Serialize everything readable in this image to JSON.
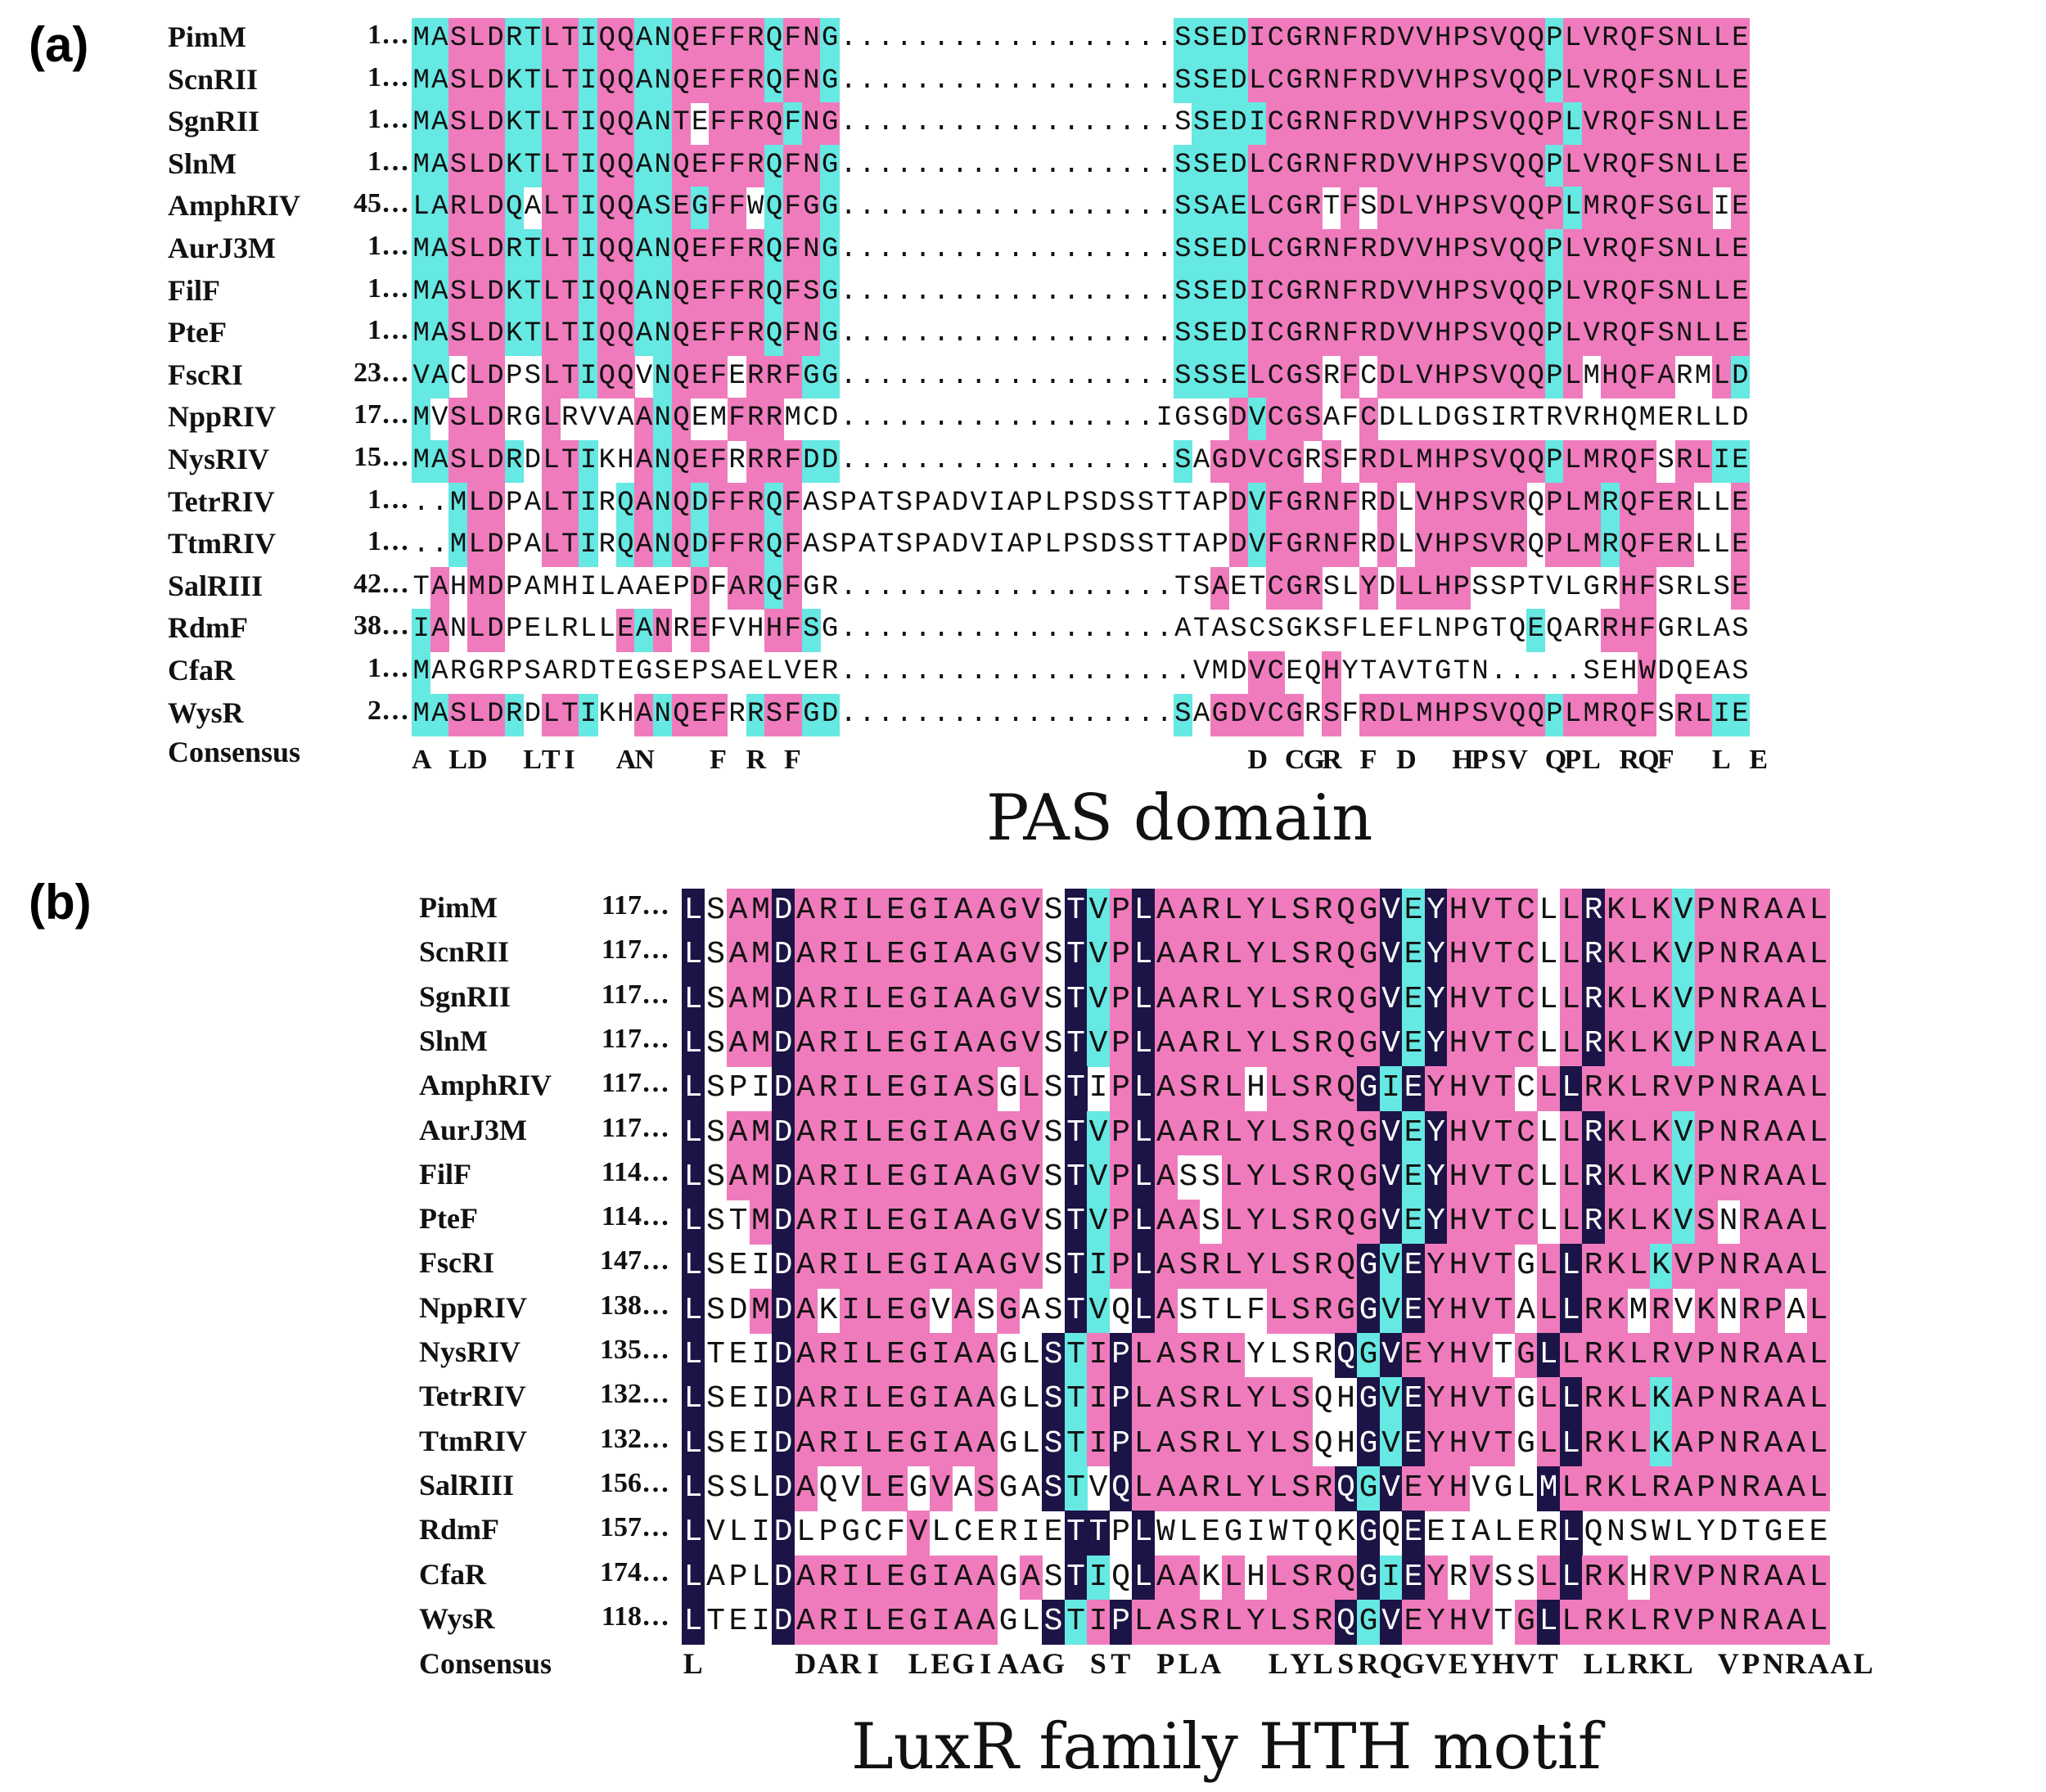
{
  "colors": {
    "identical": "#1c1446",
    "conserved": "#ef7bbd",
    "similar": "#66e8e3",
    "background": "#ffffff"
  },
  "panels": [
    {
      "letter": "(a)",
      "caption": "PAS domain",
      "consensus_label": "Consensus",
      "sequences": [
        {
          "name": "PimM",
          "start": "1…",
          "seq": "MASLDRTLTIQQANQEFFRQFNG..................SSEDICGRNFRDVVHPSVQQPLVRQFSNLLE",
          "shade": "ccpppccppcppccpppppcppcwwwwwwwwwwwwwwwwwwccccppppppppppppppppcppppppppppccp"
        },
        {
          "name": "ScnRII",
          "start": "1…",
          "seq": "MASLDKTLTIQQANQEFFRQFNG..................SSEDLCGRNFRDVVHPSVQQPLVRQFSNLLE",
          "shade": "ccpppccppcppccpppppcppcwwwwwwwwwwwwwwwwwwccccppppppppppppppppcppppppppppccp"
        },
        {
          "name": "SgnRII",
          "start": "1…",
          "seq": "MASLDKTLTIQQANTEFFRQFNG..................SSEDICGRNFRDVVHPSVQQPLVRQFSNLLE",
          "shade": "ccpppccppcppccpwppppcppcwwwwwwwwwwwwwwwwwwccccppppppppppppppppcppppppppppccp"
        },
        {
          "name": "SlnM",
          "start": "1…",
          "seq": "MASLDKTLTIQQANQEFFRQFNG..................SSEDLCGRNFRDVVHPSVQQPLVRQFSNLLE",
          "shade": "ccpppccppcppccpppppcppcwwwwwwwwwwwwwwwwwwccccppppppppppppppppcppppppppppccp"
        },
        {
          "name": "AmphRIV",
          "start": "45…",
          "seq": "LARLDQALTIQQASEGFFWQFGG..................SSAELCGRTFSDLVHPSVQQPLMRQFSGLIE",
          "shade": "ccpppcwppcppccpcppwcppcwwwwwwwwwwwwwwwwwwccccppppwpwppppppppppcpppppppwpccp"
        },
        {
          "name": "AurJ3M",
          "start": "1…",
          "seq": "MASLDRTLTIQQANQEFFRQFNG..................SSEDLCGRNFRDVVHPSVQQPLVRQFSNLLE",
          "shade": "ccpppccppcppccpppppcppcwwwwwwwwwwwwwwwwwwccccppppppppppppppppcppppppppppccp"
        },
        {
          "name": "FilF",
          "start": "1…",
          "seq": "MASLDKTLTIQQANQEFFRQFSG..................SSEDICGRNFRDVVHPSVQQPLVRQFSNLLE",
          "shade": "ccpppccppcppccpppppcppcwwwwwwwwwwwwwwwwwwccccppppppppppppppppcppppppppppccp"
        },
        {
          "name": "PteF",
          "start": "1…",
          "seq": "MASLDKTLTIQQANQEFFRQFNG..................SSEDICGRNFRDVVHPSVQQPLVRQFSNLLE",
          "shade": "ccpppccppcppccpppppcppcwwwwwwwwwwwwwwwwwwccccppppppppppppppppcppppppppppccp"
        },
        {
          "name": "FscRI",
          "start": "23…",
          "seq": "VACLDPSLTIQQVNQEFERRFGG..................SSSELCGSRFCDLVHPSVQQPLMHQFARMLD",
          "shade": "ccwppwwppcppwcpppwpppccwwwwwwwwwwwwwwwwwwccccppppwpwpppppppppcpwppppwwpcc"
        },
        {
          "name": "NppRIV",
          "start": "17…",
          "seq": "MVSLDRGLRVVAANQEMFRRMCD.................IGSGDVCGSAFCDLLDGSIRTRVRHQMERLLD",
          "shade": "cwpppwwpwwwwpcpwwpppwwwwwwwwwwwwwwwwwwwwwwwwpcpppwwpwwwwwwwwwwwwwwwwwwwwwcc"
        },
        {
          "name": "NysRIV",
          "start": "15…",
          "seq": "MASLDRDLTIKHANQEFRRRFDD..................SAGDVCGRSFRDLMHPSVQQPLMRQFSRLIE",
          "shade": "ccpppcwppcwwpcpppwpppccwwwwwwwwwwwwwwwwwwcwpppppwpwppppppppppcpppppwppccp"
        },
        {
          "name": "TetrRIV",
          "start": "1…",
          "seq": "..MLDPALTIRQANQDFFRQFASPATSPADVIAPLPSDSSTTAPDVFGRNFRDLVHPSVRQPLMRQFERLLE",
          "shade": "wwcppwwppcwcpcpcpppcpwwwwwwwwwwwwwwwwwwwwwwwpcpppppwpwppppppwpppcppppwwpccp"
        },
        {
          "name": "TtmRIV",
          "start": "1…",
          "seq": "..MLDPALTIRQANQDFFRQFASPATSPADVIAPLPSDSSTTAPDVFGRNFRDLVHPSVRQPLMRQFERLLE",
          "shade": "wwcppwwppcwcpcpcpppcpwwwwwwwwwwwwwwwwwwwwwwwpcpppppwpwppppppwpppcppppwwpccp"
        },
        {
          "name": "SalRIII",
          "start": "42…",
          "seq": "TAHMDPAMHILAAEPDFARQFGR..................TSAETCGRSLYDLLHPSSPTVLGRHFSRLSE",
          "shade": "wpwppwwwwwwwwwwpwppcpwwwwwwwwwwwwwwwwwwwwwwpwwpppwwpwppppwwwwwwwwppwwwwp"
        },
        {
          "name": "RdmF",
          "start": "38…",
          "seq": "IANLDPELRLLEANREFVHHFSG..................ATASCSGKSFLEFLNPGTQEQARRHFGRLAS",
          "shade": "cpwppwwwwwwpcpwpwwwppcwwwwwwwwwwwwwwwwwwwwwwwwwwwwwwwwwwwwwwcwwwpppwwwww"
        },
        {
          "name": "CfaR",
          "start": "1…",
          "seq": "MARGRPSARDTEGSEPSAELVER...................VMDVCEQHYTAVTGTN.....SEHWDQEAS",
          "shade": "cwwwwwwwwwwwwwwwwwwwwwwwwwwwwwwwwwwwwwwwwwwwwppwwpwwwwwwwwwwwwwwwwpwwwww"
        },
        {
          "name": "WysR",
          "start": "2…",
          "seq": "MASLDRDLTIKHANQEFRRSFGD..................SAGDVCGRSFRDLMHPSVQQPLMRQFSRLIE",
          "shade": "ccpppcwppcwwpcpppwcppccwwwwwwwwwwwwwwwwwwcwpppppwpwppppppppppcpppppwppccp"
        }
      ],
      "consensus": "A LD LTI AN F R F D CGR F D HPSV QPL RQF L E",
      "consensus_cols": [
        "A",
        " ",
        "L",
        "D",
        " ",
        " ",
        "L",
        "T",
        "I",
        " ",
        " ",
        "A",
        "N",
        " ",
        " ",
        " ",
        "F",
        " ",
        "R",
        " ",
        "F",
        " ",
        " ",
        "",
        "",
        "",
        "",
        "",
        "",
        "",
        "",
        "",
        "",
        "",
        "",
        "",
        "",
        "",
        "",
        "",
        "",
        "",
        " ",
        " ",
        " ",
        "D",
        " ",
        "C",
        "G",
        "R",
        " ",
        "F",
        " ",
        "D",
        " ",
        " ",
        "H",
        "P",
        "S",
        "V",
        " ",
        "Q",
        "P",
        "L",
        " ",
        "R",
        "Q",
        "F",
        " ",
        " ",
        "L",
        " ",
        "E"
      ]
    },
    {
      "letter": "(b)",
      "caption": "LuxR family HTH motif",
      "consensus_label": "Consensus",
      "sequences": [
        {
          "name": "PimM",
          "start": "117…",
          "seq": "LSAMDARILEGIAAGVSTVPLAARLYLSRQGVEYHVTCLLRKLKVPNRAAL",
          "shade": "dwppdpppppppppppwdcpdppppppppppdcdppppwpdpppcppppppp"
        },
        {
          "name": "ScnRII",
          "start": "117…",
          "seq": "LSAMDARILEGIAAGVSTVPLAARLYLSRQGVEYHVTCLLRKLKVPNRAAL",
          "shade": "dwppdpppppppppppwdcpdppppppppppdcdppppwpdpppcppppppp"
        },
        {
          "name": "SgnRII",
          "start": "117…",
          "seq": "LSAMDARILEGIAAGVSTVPLAARLYLSRQGVEYHVTCLLRKLKVPNRAAL",
          "shade": "dwppdpppppppppppwdcpdppppppppppdcdppppwpdpppcppppppp"
        },
        {
          "name": "SlnM",
          "start": "117…",
          "seq": "LSAMDARILEGIAAGVSTVPLAARLYLSRQGVEYHVTCLLRKLKVPNRAAL",
          "shade": "dwppdpppppppppppwdcpdppppppppppdcdppppwpdpppcppppppp"
        },
        {
          "name": "AmphRIV",
          "start": "117…",
          "seq": "LSPIDARILEGIASGLSTIPLASRLHLSRQGIEYHVTCLLRKLRVPNRAAL",
          "shade": "dwwwdpppppppppwpwdwpdppppwppppdcdppppwpdpppppppppppp"
        },
        {
          "name": "AurJ3M",
          "start": "117…",
          "seq": "LSAMDARILEGIAAGVSTVPLAARLYLSRQGVEYHVTCLLRKLKVPNRAAL",
          "shade": "dwppdpppppppppppwdcpdppppppppppdcdppppwpdpppcppppppp"
        },
        {
          "name": "FilF",
          "start": "114…",
          "seq": "LSAMDARILEGIAAGVSTVPLASSLYLSRQGVEYHVTCLLRKLKVPNRAAL",
          "shade": "dwppdpppppppppppwdcpdpwwpppppppdcdppppwpdpppcppppppp"
        },
        {
          "name": "PteF",
          "start": "114…",
          "seq": "LSTMDARILEGIAAGVSTVPLAASLYLSRQGVEYHVTCLLRKLKVSNRAAL",
          "shade": "dwwpdpppppppppppwdcpdppwpppppppdcdppppwpdpppcpwpppppp"
        },
        {
          "name": "FscRI",
          "start": "147…",
          "seq": "LSEIDARILEGIAAGVSTIPLASRLYLSRQGVEYHVTGLLRKLKVPNRAAL",
          "shade": "dwwwdpppppppppppwdcpdpppppppppdcdppppwpdpppcppppppp"
        },
        {
          "name": "NppRIV",
          "start": "138…",
          "seq": "LSDMDAKILEGVASGASTVQLASTLFLSRGGVEYHVTALLRKMRVKNRPAL",
          "shade": "dwwpdpwppppwpwpwwdcwdpwwwwppppdcdppppwpdppwpwpwppwpp"
        },
        {
          "name": "NysRIV",
          "start": "135…",
          "seq": "LTEIDARILEGIAAGLSTIPLASRLYLSRQGVEYHVTGLLRKLRVPNRAAL",
          "shade": "dwwwdpppppppppwwdcpdpppppwwwwdcdppppwpdpppppppppppp"
        },
        {
          "name": "TetrRIV",
          "start": "132…",
          "seq": "LSEIDARILEGIAAGLSTIPLASRLYLSQHGVEYHVTGLLRKLKAPNRAAL",
          "shade": "dwwwdpppppppppwwdcpdppppppppwwdcdppppwpdpppcppppppp"
        },
        {
          "name": "TtmRIV",
          "start": "132…",
          "seq": "LSEIDARILEGIAAGLSTIPLASRLYLSQHGVEYHVTGLLRKLKAPNRAAL",
          "shade": "dwwwdpppppppppwwdcpdppppppppwwdcdppppwpdpppcppppppp"
        },
        {
          "name": "SalRIII",
          "start": "156…",
          "seq": "LSSLDAQVLEGVASGASTVQLAARLYLSRQGVEYHVGLMLRKLRAPNRAAL",
          "shade": "dwwwdpwwppwpwpwwdcwdpppppppppdcdpppwwwdpppppppppppp"
        },
        {
          "name": "RdmF",
          "start": "157…",
          "seq": "LVLIDLPGCFVLCERIETTPLWLEGIWTQKGQEEIALERLQNSWLYDTGEE",
          "shade": "dwwwdwwwwwpwwwwwwddwdwwwwwwwwwdwdwwwwwwdwwwwwwwwwww"
        },
        {
          "name": "CfaR",
          "start": "174…",
          "seq": "LAPLDARILEGIAAGASTIQLAAKLHLSRQGIEYRVSSLLRKHRVPNRAAL",
          "shade": "dwwwdpppppppppwpwdcwdppwpwppppdcdpwpwwpdppwpppppppp"
        },
        {
          "name": "WysR",
          "start": "118…",
          "seq": "LTEIDARILEGIAAGLSTIPLASRLYLSRQGVEYHVTGLLRKLRVPNRAAL",
          "shade": "dwwwdpppppppppwwdcpdpppppppppdcdppppwpdpppppppppppp"
        }
      ],
      "consensus": "L DARI LEGIAAG ST PLA LYLSRQGVEYHVT LLRKL VPNRAAL",
      "consensus_cols": [
        "L",
        " ",
        " ",
        " ",
        " ",
        "D",
        "A",
        "R",
        "I",
        " ",
        "L",
        "E",
        "G",
        "I",
        "A",
        "A",
        "G",
        " ",
        "S",
        "T",
        " ",
        "P",
        "L",
        "A",
        " ",
        " ",
        "L",
        "Y",
        "L",
        "S",
        "R",
        "Q",
        "G",
        "V",
        "E",
        "Y",
        "H",
        "V",
        "T",
        " ",
        "L",
        "L",
        "R",
        "K",
        "L",
        " ",
        "V",
        "P",
        "N",
        "R",
        "A",
        "A",
        "L"
      ]
    }
  ]
}
